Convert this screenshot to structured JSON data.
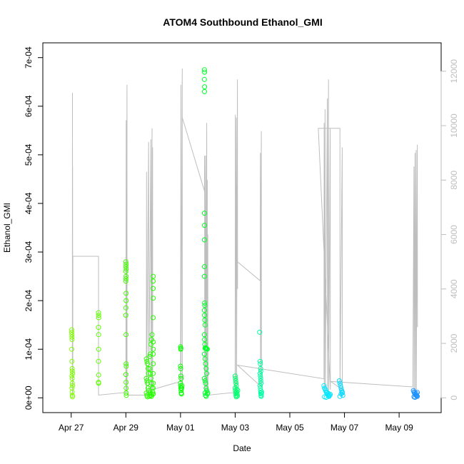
{
  "chart_data": {
    "type": "scatter",
    "title": "ATOM4 Southbound Ethanol_GMI",
    "xlabel": "Date",
    "ylabel": "Ethanol_GMI",
    "x_range": [
      "2016-04-26T12:00",
      "2016-05-10T00:00"
    ],
    "ylim": [
      0,
      0.0007
    ],
    "y2lim": [
      0,
      12500
    ],
    "x_ticks": [
      {
        "date": "2016-04-27",
        "label": "Apr 27"
      },
      {
        "date": "2016-04-29",
        "label": "Apr 29"
      },
      {
        "date": "2016-05-01",
        "label": "May 01"
      },
      {
        "date": "2016-05-03",
        "label": "May 03"
      },
      {
        "date": "2016-05-05",
        "label": "May 05"
      },
      {
        "date": "2016-05-07",
        "label": "May 07"
      },
      {
        "date": "2016-05-09",
        "label": "May 09"
      }
    ],
    "y_ticks": [
      {
        "value": 0,
        "label": "0e+00"
      },
      {
        "value": 0.0001,
        "label": "1e-04"
      },
      {
        "value": 0.0002,
        "label": "2e-04"
      },
      {
        "value": 0.0003,
        "label": "3e-04"
      },
      {
        "value": 0.0004,
        "label": "4e-04"
      },
      {
        "value": 0.0005,
        "label": "5e-04"
      },
      {
        "value": 0.0006,
        "label": "6e-04"
      },
      {
        "value": 0.0007,
        "label": "7e-04"
      }
    ],
    "y2_ticks": [
      {
        "value": 0,
        "label": "0"
      },
      {
        "value": 2000,
        "label": "2000"
      },
      {
        "value": 4000,
        "label": "4000"
      },
      {
        "value": 6000,
        "label": "6000"
      },
      {
        "value": 8000,
        "label": "8000"
      },
      {
        "value": 10000,
        "label": "10000"
      },
      {
        "value": 12000,
        "label": "12000"
      }
    ],
    "grid": false,
    "colors": {
      "altitude_line": "#bebebe",
      "point_gradient": [
        "#7fff00",
        "#00ff00",
        "#00ffff",
        "#1e90ff"
      ]
    },
    "altitude_series": [
      [
        "2016-04-27T01:00",
        0
      ],
      [
        "2016-04-27T01:05",
        11200
      ],
      [
        "2016-04-27T01:10",
        400
      ],
      [
        "2016-04-27T01:15",
        8500
      ],
      [
        "2016-04-27T01:20",
        100
      ],
      [
        "2016-04-27T01:30",
        5200
      ],
      [
        "2016-04-28T00:00",
        5200
      ],
      [
        "2016-04-28T00:00",
        100
      ],
      [
        "2016-04-29T00:00",
        200
      ],
      [
        "2016-04-29T00:20",
        10200
      ],
      [
        "2016-04-29T00:25",
        300
      ],
      [
        "2016-04-29T01:00",
        11500
      ],
      [
        "2016-04-29T01:05",
        100
      ],
      [
        "2016-04-29T00:00",
        100
      ],
      [
        "2016-04-29T18:00",
        100
      ],
      [
        "2016-04-29T18:10",
        8300
      ],
      [
        "2016-04-29T18:15",
        100
      ],
      [
        "2016-04-29T20:00",
        9400
      ],
      [
        "2016-04-29T20:05",
        100
      ],
      [
        "2016-04-29T22:00",
        9500
      ],
      [
        "2016-04-29T22:05",
        100
      ],
      [
        "2016-04-29T23:00",
        9900
      ],
      [
        "2016-04-29T23:05",
        200
      ],
      [
        "2016-04-29T23:30",
        9200
      ],
      [
        "2016-04-29T23:35",
        300
      ],
      [
        "2016-04-29T23:00",
        300
      ],
      [
        "2016-05-01T00:00",
        600
      ],
      [
        "2016-05-01T00:20",
        11500
      ],
      [
        "2016-05-01T00:25",
        400
      ],
      [
        "2016-05-01T01:30",
        12100
      ],
      [
        "2016-05-01T01:35",
        500
      ],
      [
        "2016-05-01T01:30",
        10300
      ],
      [
        "2016-05-01T21:00",
        7600
      ],
      [
        "2016-05-01T21:10",
        8900
      ],
      [
        "2016-05-01T21:15",
        300
      ],
      [
        "2016-05-01T22:00",
        8900
      ],
      [
        "2016-05-01T22:05",
        200
      ],
      [
        "2016-05-01T23:00",
        10100
      ],
      [
        "2016-05-01T23:05",
        100
      ],
      [
        "2016-05-01T23:30",
        8000
      ],
      [
        "2016-05-01T23:35",
        100
      ],
      [
        "2016-05-02T00:00",
        6000
      ],
      [
        "2016-05-02T00:05",
        100
      ],
      [
        "2016-05-03T00:00",
        200
      ],
      [
        "2016-05-03T00:10",
        10400
      ],
      [
        "2016-05-03T00:15",
        300
      ],
      [
        "2016-05-03T01:00",
        10300
      ],
      [
        "2016-05-03T01:05",
        5000
      ],
      [
        "2016-05-03T01:10",
        7800
      ],
      [
        "2016-05-03T01:15",
        200
      ],
      [
        "2016-05-03T02:00",
        11700
      ],
      [
        "2016-05-03T02:05",
        4000
      ],
      [
        "2016-05-03T02:00",
        5000
      ],
      [
        "2016-05-03T22:00",
        4300
      ],
      [
        "2016-05-03T22:10",
        9000
      ],
      [
        "2016-05-03T22:15",
        400
      ],
      [
        "2016-05-03T23:00",
        9800
      ],
      [
        "2016-05-03T23:05",
        400
      ],
      [
        "2016-05-03T02:00",
        1200
      ],
      [
        "2016-05-06T06:00",
        700
      ],
      [
        "2016-05-06T06:10",
        10100
      ],
      [
        "2016-05-06T06:15",
        200
      ],
      [
        "2016-05-06T07:00",
        10600
      ],
      [
        "2016-05-06T07:05",
        200
      ],
      [
        "2016-05-06T09:00",
        11000
      ],
      [
        "2016-05-06T09:05",
        200
      ],
      [
        "2016-05-06T10:00",
        11700
      ],
      [
        "2016-05-06T10:05",
        200
      ],
      [
        "2016-05-06T11:30",
        9900
      ],
      [
        "2016-05-06T11:35",
        300
      ],
      [
        "2016-05-06T01:00",
        9900
      ],
      [
        "2016-05-06T20:00",
        9900
      ],
      [
        "2016-05-06T20:00",
        9000
      ],
      [
        "2016-05-06T20:05",
        300
      ],
      [
        "2016-05-06T22:00",
        9200
      ],
      [
        "2016-05-06T22:05",
        300
      ],
      [
        "2016-05-06T12:00",
        600
      ],
      [
        "2016-05-09T12:00",
        400
      ],
      [
        "2016-05-09T13:00",
        8500
      ],
      [
        "2016-05-09T13:05",
        200
      ],
      [
        "2016-05-09T14:00",
        9000
      ],
      [
        "2016-05-09T14:05",
        100
      ],
      [
        "2016-05-09T15:00",
        9100
      ],
      [
        "2016-05-09T15:05",
        100
      ],
      [
        "2016-05-09T16:00",
        9300
      ],
      [
        "2016-05-09T16:05",
        2600
      ]
    ],
    "ethanol_points": [
      [
        "2016-04-27T00:30",
        0.00014
      ],
      [
        "2016-04-27T00:30",
        0.000135
      ],
      [
        "2016-04-27T00:35",
        0.00013
      ],
      [
        "2016-04-27T00:40",
        0.000125
      ],
      [
        "2016-04-27T00:45",
        0.00012
      ],
      [
        "2016-04-27T00:30",
        0.0001
      ],
      [
        "2016-04-27T00:40",
        7.5e-05
      ],
      [
        "2016-04-27T00:50",
        6e-05
      ],
      [
        "2016-04-27T01:00",
        5.5e-05
      ],
      [
        "2016-04-27T01:10",
        5e-05
      ],
      [
        "2016-04-27T00:40",
        4.5e-05
      ],
      [
        "2016-04-27T00:50",
        4e-05
      ],
      [
        "2016-04-27T01:00",
        3e-05
      ],
      [
        "2016-04-27T01:10",
        2.5e-05
      ],
      [
        "2016-04-27T00:40",
        2e-05
      ],
      [
        "2016-04-27T00:50",
        1.2e-05
      ],
      [
        "2016-04-27T01:00",
        5e-06
      ],
      [
        "2016-04-27T01:05",
        2e-06
      ],
      [
        "2016-04-28T00:00",
        0.000175
      ],
      [
        "2016-04-28T00:05",
        0.00017
      ],
      [
        "2016-04-28T00:10",
        0.000165
      ],
      [
        "2016-04-28T00:00",
        0.000145
      ],
      [
        "2016-04-28T00:05",
        0.00013
      ],
      [
        "2016-04-28T00:10",
        0.0001
      ],
      [
        "2016-04-28T00:00",
        7.5e-05
      ],
      [
        "2016-04-28T00:05",
        4.7e-05
      ],
      [
        "2016-04-28T00:00",
        3.2e-05
      ],
      [
        "2016-04-28T00:05",
        3e-05
      ],
      [
        "2016-04-29T00:00",
        0.00028
      ],
      [
        "2016-04-29T00:10",
        0.000275
      ],
      [
        "2016-04-29T00:05",
        0.00027
      ],
      [
        "2016-04-29T00:15",
        0.000265
      ],
      [
        "2016-04-29T00:00",
        0.00026
      ],
      [
        "2016-04-29T00:10",
        0.00025
      ],
      [
        "2016-04-29T00:05",
        0.000245
      ],
      [
        "2016-04-29T00:00",
        0.00024
      ],
      [
        "2016-04-29T00:10",
        0.000215
      ],
      [
        "2016-04-29T00:15",
        0.0002
      ],
      [
        "2016-04-29T00:05",
        0.000185
      ],
      [
        "2016-04-29T00:00",
        0.00017
      ],
      [
        "2016-04-29T00:10",
        0.00013
      ],
      [
        "2016-04-29T00:15",
        7e-05
      ],
      [
        "2016-04-29T00:20",
        6.5e-05
      ],
      [
        "2016-04-29T00:05",
        4.8e-05
      ],
      [
        "2016-04-29T00:10",
        3.2e-05
      ],
      [
        "2016-04-29T00:15",
        2e-05
      ],
      [
        "2016-04-29T00:20",
        1e-05
      ],
      [
        "2016-04-29T00:25",
        5e-06
      ],
      [
        "2016-04-29T18:00",
        8e-05
      ],
      [
        "2016-04-29T18:30",
        7.5e-05
      ],
      [
        "2016-04-29T19:00",
        7e-05
      ],
      [
        "2016-04-29T19:30",
        6e-05
      ],
      [
        "2016-04-29T20:00",
        5e-05
      ],
      [
        "2016-04-29T18:00",
        4e-05
      ],
      [
        "2016-04-29T18:30",
        3.5e-05
      ],
      [
        "2016-04-29T19:00",
        3e-05
      ],
      [
        "2016-04-29T19:30",
        2e-05
      ],
      [
        "2016-04-29T20:00",
        1.5e-05
      ],
      [
        "2016-04-29T18:00",
        1e-05
      ],
      [
        "2016-04-29T18:30",
        5e-06
      ],
      [
        "2016-04-29T19:00",
        2e-06
      ],
      [
        "2016-04-29T20:30",
        3e-06
      ],
      [
        "2016-04-29T21:00",
        6e-06
      ],
      [
        "2016-04-29T21:00",
        8.5e-05
      ],
      [
        "2016-04-29T21:30",
        9e-05
      ],
      [
        "2016-04-29T22:00",
        0.00011
      ],
      [
        "2016-04-29T22:30",
        0.00012
      ],
      [
        "2016-04-29T23:00",
        0.00013
      ],
      [
        "2016-04-29T21:00",
        6e-05
      ],
      [
        "2016-04-29T21:30",
        5e-05
      ],
      [
        "2016-04-29T22:00",
        4e-05
      ],
      [
        "2016-04-29T22:30",
        3e-05
      ],
      [
        "2016-04-29T23:00",
        2e-05
      ],
      [
        "2016-04-29T21:30",
        1e-05
      ],
      [
        "2016-04-29T22:00",
        5e-06
      ],
      [
        "2016-04-29T22:30",
        3e-06
      ],
      [
        "2016-04-29T23:00",
        8e-06
      ],
      [
        "2016-04-29T23:30",
        1.2e-05
      ],
      [
        "2016-04-30T00:00",
        0.00025
      ],
      [
        "2016-04-29T23:55",
        0.00024
      ],
      [
        "2016-04-30T00:00",
        0.000225
      ],
      [
        "2016-04-30T00:05",
        0.000205
      ],
      [
        "2016-04-30T00:00",
        0.000165
      ],
      [
        "2016-04-30T00:00",
        0.000115
      ],
      [
        "2016-04-30T00:05",
        0.0001
      ],
      [
        "2016-04-30T00:00",
        9e-05
      ],
      [
        "2016-04-30T00:05",
        7e-05
      ],
      [
        "2016-04-30T00:00",
        5e-05
      ],
      [
        "2016-04-30T00:05",
        3e-05
      ],
      [
        "2016-04-30T00:00",
        2e-05
      ],
      [
        "2016-04-30T00:05",
        8e-06
      ],
      [
        "2016-05-01T00:00",
        0.000105
      ],
      [
        "2016-05-01T00:10",
        0.0001
      ],
      [
        "2016-05-01T00:20",
        0.000102
      ],
      [
        "2016-05-01T00:00",
        6.5e-05
      ],
      [
        "2016-05-01T00:10",
        6e-05
      ],
      [
        "2016-05-01T00:20",
        4.5e-05
      ],
      [
        "2016-05-01T00:30",
        4e-05
      ],
      [
        "2016-05-01T00:00",
        3e-05
      ],
      [
        "2016-05-01T00:10",
        2.5e-05
      ],
      [
        "2016-05-01T00:20",
        2e-05
      ],
      [
        "2016-05-01T00:30",
        1.5e-05
      ],
      [
        "2016-05-01T00:40",
        1e-05
      ],
      [
        "2016-05-01T00:50",
        8e-06
      ],
      [
        "2016-05-01T01:00",
        2e-05
      ],
      [
        "2016-05-01T01:20",
        2.5e-05
      ],
      [
        "2016-05-01T21:00",
        0.000675
      ],
      [
        "2016-05-01T21:10",
        0.00067
      ],
      [
        "2016-05-01T21:00",
        0.000655
      ],
      [
        "2016-05-01T21:10",
        0.00064
      ],
      [
        "2016-05-01T21:05",
        0.00063
      ],
      [
        "2016-05-01T21:00",
        0.00038
      ],
      [
        "2016-05-01T21:05",
        0.000355
      ],
      [
        "2016-05-01T21:00",
        0.000325
      ],
      [
        "2016-05-01T21:05",
        0.00027
      ],
      [
        "2016-05-01T21:00",
        0.00025
      ],
      [
        "2016-05-01T21:10",
        0.000195
      ],
      [
        "2016-05-01T21:20",
        0.00019
      ],
      [
        "2016-05-01T21:00",
        0.00018
      ],
      [
        "2016-05-01T21:10",
        0.00017
      ],
      [
        "2016-05-01T21:20",
        0.00016
      ],
      [
        "2016-05-01T21:30",
        0.00015
      ],
      [
        "2016-05-01T21:00",
        0.00013
      ],
      [
        "2016-05-01T21:10",
        0.00012
      ],
      [
        "2016-05-01T21:20",
        0.00011
      ],
      [
        "2016-05-01T21:30",
        0.000102
      ],
      [
        "2016-05-01T22:00",
        0.000103
      ],
      [
        "2016-05-01T22:30",
        0.000102
      ],
      [
        "2016-05-01T23:00",
        0.000101
      ],
      [
        "2016-05-01T23:30",
        0.0001
      ],
      [
        "2016-05-01T21:00",
        9e-05
      ],
      [
        "2016-05-01T21:30",
        8e-05
      ],
      [
        "2016-05-01T22:00",
        7e-05
      ],
      [
        "2016-05-01T22:30",
        6e-05
      ],
      [
        "2016-05-01T23:00",
        5e-05
      ],
      [
        "2016-05-01T21:00",
        4e-05
      ],
      [
        "2016-05-01T21:30",
        3.5e-05
      ],
      [
        "2016-05-01T22:00",
        3e-05
      ],
      [
        "2016-05-01T22:30",
        2e-05
      ],
      [
        "2016-05-01T23:00",
        1.5e-05
      ],
      [
        "2016-05-01T21:30",
        1e-05
      ],
      [
        "2016-05-01T22:00",
        5e-06
      ],
      [
        "2016-05-01T22:30",
        3e-06
      ],
      [
        "2016-05-01T23:30",
        8e-06
      ],
      [
        "2016-05-02T00:00",
        1e-05
      ],
      [
        "2016-05-03T00:00",
        4.5e-05
      ],
      [
        "2016-05-03T00:15",
        4e-05
      ],
      [
        "2016-05-03T00:30",
        3.5e-05
      ],
      [
        "2016-05-03T00:45",
        3e-05
      ],
      [
        "2016-05-03T01:00",
        2.5e-05
      ],
      [
        "2016-05-03T00:00",
        2e-05
      ],
      [
        "2016-05-03T00:15",
        1.5e-05
      ],
      [
        "2016-05-03T00:30",
        1e-05
      ],
      [
        "2016-05-03T00:45",
        5e-06
      ],
      [
        "2016-05-03T01:00",
        2e-06
      ],
      [
        "2016-05-03T01:15",
        1.2e-05
      ],
      [
        "2016-05-03T01:30",
        1.8e-05
      ],
      [
        "2016-05-03T01:45",
        8e-06
      ],
      [
        "2016-05-03T02:00",
        4e-06
      ],
      [
        "2016-05-03T02:15",
        1.5e-05
      ],
      [
        "2016-05-03T21:30",
        0.000135
      ],
      [
        "2016-05-03T22:00",
        7.5e-05
      ],
      [
        "2016-05-03T22:10",
        7e-05
      ],
      [
        "2016-05-03T22:20",
        6e-05
      ],
      [
        "2016-05-03T22:30",
        5.5e-05
      ],
      [
        "2016-05-03T22:00",
        5e-05
      ],
      [
        "2016-05-03T22:10",
        4.5e-05
      ],
      [
        "2016-05-03T22:20",
        4e-05
      ],
      [
        "2016-05-03T22:30",
        3.5e-05
      ],
      [
        "2016-05-03T22:40",
        3e-05
      ],
      [
        "2016-05-03T22:00",
        2.5e-05
      ],
      [
        "2016-05-03T22:10",
        2e-05
      ],
      [
        "2016-05-03T22:20",
        1.5e-05
      ],
      [
        "2016-05-03T22:30",
        1e-05
      ],
      [
        "2016-05-03T22:40",
        5e-06
      ],
      [
        "2016-05-03T22:50",
        3e-06
      ],
      [
        "2016-05-03T23:00",
        8e-06
      ],
      [
        "2016-05-03T23:10",
        1.2e-05
      ],
      [
        "2016-05-06T06:00",
        2.5e-05
      ],
      [
        "2016-05-06T06:30",
        2e-05
      ],
      [
        "2016-05-06T07:00",
        1.8e-05
      ],
      [
        "2016-05-06T07:30",
        1.5e-05
      ],
      [
        "2016-05-06T08:00",
        1.2e-05
      ],
      [
        "2016-05-06T08:30",
        1e-05
      ],
      [
        "2016-05-06T09:00",
        8e-06
      ],
      [
        "2016-05-06T09:30",
        6e-06
      ],
      [
        "2016-05-06T10:00",
        4e-06
      ],
      [
        "2016-05-06T10:30",
        3e-06
      ],
      [
        "2016-05-06T11:00",
        5e-06
      ],
      [
        "2016-05-06T11:30",
        7e-06
      ],
      [
        "2016-05-06T06:30",
        2e-06
      ],
      [
        "2016-05-06T08:00",
        1e-06
      ],
      [
        "2016-05-06T10:00",
        9e-06
      ],
      [
        "2016-05-06T19:30",
        3.5e-05
      ],
      [
        "2016-05-06T20:00",
        3e-05
      ],
      [
        "2016-05-06T20:30",
        2.5e-05
      ],
      [
        "2016-05-06T21:00",
        2e-05
      ],
      [
        "2016-05-06T21:30",
        1.5e-05
      ],
      [
        "2016-05-06T22:00",
        1e-05
      ],
      [
        "2016-05-06T22:30",
        5e-06
      ],
      [
        "2016-05-06T20:00",
        3e-06
      ],
      [
        "2016-05-06T21:00",
        8e-06
      ],
      [
        "2016-05-06T22:00",
        1.2e-05
      ],
      [
        "2016-05-09T12:30",
        1.5e-05
      ],
      [
        "2016-05-09T13:00",
        1.2e-05
      ],
      [
        "2016-05-09T13:30",
        1e-05
      ],
      [
        "2016-05-09T14:00",
        8e-06
      ],
      [
        "2016-05-09T14:30",
        6e-06
      ],
      [
        "2016-05-09T15:00",
        5e-06
      ],
      [
        "2016-05-09T15:30",
        4e-06
      ],
      [
        "2016-05-09T16:00",
        3e-06
      ],
      [
        "2016-05-09T13:00",
        2e-06
      ],
      [
        "2016-05-09T14:00",
        1e-06
      ],
      [
        "2016-05-09T15:00",
        9e-06
      ],
      [
        "2016-05-09T16:00",
        1.1e-05
      ]
    ]
  }
}
